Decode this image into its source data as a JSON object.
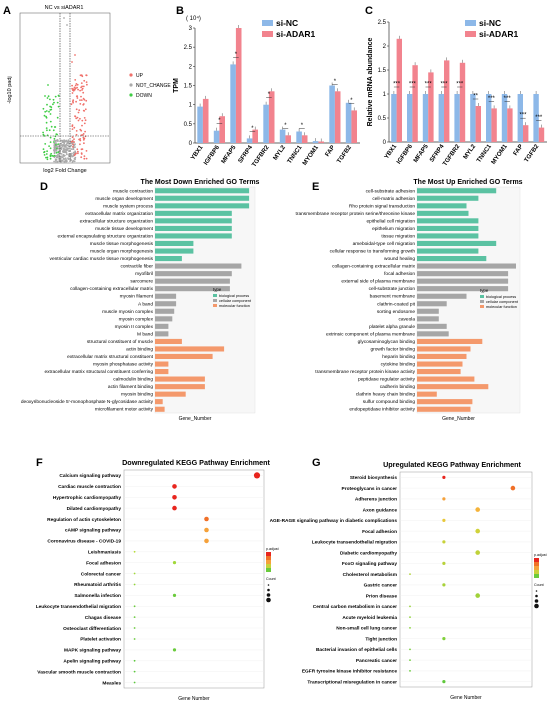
{
  "panels": {
    "A": {
      "letter": "A",
      "title": "NC vs siADAR1",
      "xlabel": "log2 Fold Change",
      "ylabel": "-log10 padj",
      "legend": [
        {
          "label": "UP",
          "color": "#f0706a"
        },
        {
          "label": "NOT_CHANGE",
          "color": "#aaaaaa"
        },
        {
          "label": "DOWN",
          "color": "#3fcd45"
        }
      ]
    },
    "B": {
      "letter": "B",
      "exponent": "( 10⁴)"
    },
    "C": {
      "letter": "C"
    },
    "D": {
      "letter": "D"
    },
    "E": {
      "letter": "E"
    },
    "F": {
      "letter": "F"
    },
    "G": {
      "letter": "G"
    }
  },
  "chart_data": [
    {
      "id": "B",
      "type": "bar",
      "ylabel": "TPM",
      "ylim": [
        0,
        3
      ],
      "yticks": [
        0,
        0.5,
        1,
        1.5,
        2,
        2.5,
        3
      ],
      "categories": [
        "YBX1",
        "IGFBP6",
        "MFAP5",
        "SFRP4",
        "TGFBR2",
        "MYL2",
        "TNNC1",
        "MYOM1",
        "FAP",
        "TGFB2"
      ],
      "series": [
        {
          "name": "si-NC",
          "color": "#8db8e8",
          "values": [
            0.95,
            0.32,
            2.05,
            0.12,
            1.0,
            0.35,
            0.3,
            0.05,
            1.5,
            1.05
          ]
        },
        {
          "name": "si-ADAR1",
          "color": "#f2838e",
          "values": [
            1.15,
            0.7,
            3.0,
            0.35,
            1.35,
            0.2,
            0.2,
            0.04,
            1.35,
            0.85
          ]
        }
      ],
      "sig_labels": [
        "",
        "*",
        "*",
        "*",
        "*",
        "*",
        "*",
        "",
        "*",
        "*"
      ],
      "legend_position": "top-right"
    },
    {
      "id": "C",
      "type": "bar",
      "ylabel": "Relative mRNA abundance",
      "ylim": [
        0,
        2.5
      ],
      "yticks": [
        0,
        0.5,
        1,
        1.5,
        2,
        2.5
      ],
      "categories": [
        "YBX1",
        "IGFBP6",
        "MFAP5",
        "SFRP4",
        "TGFBR2",
        "MYL2",
        "TNNC1",
        "MYOM1",
        "FAP",
        "TGFB2"
      ],
      "series": [
        {
          "name": "si-NC",
          "color": "#8db8e8",
          "values": [
            1,
            1,
            1,
            1,
            1,
            1,
            1,
            1,
            1,
            1
          ]
        },
        {
          "name": "si-ADAR1",
          "color": "#f2838e",
          "values": [
            2.15,
            1.6,
            1.45,
            1.7,
            1.65,
            0.75,
            0.7,
            0.7,
            0.35,
            0.3
          ]
        }
      ],
      "sig_labels": [
        "***",
        "***",
        "***",
        "***",
        "***",
        "**",
        "***",
        "***",
        "***",
        "***"
      ],
      "legend_position": "top-right"
    },
    {
      "id": "D",
      "type": "bar",
      "orientation": "horizontal",
      "title": "The Most Down Enriched GO Terms",
      "xlabel": "Gene_Number",
      "legend": {
        "title": "type",
        "entries": [
          {
            "label": "biological process",
            "color": "#5bc2a2"
          },
          {
            "label": "cellular component",
            "color": "#a6a6a6"
          },
          {
            "label": "molecular function",
            "color": "#f4996c"
          }
        ]
      },
      "categories": [
        "muscle contraction",
        "muscle organ development",
        "muscle system process",
        "extracellular matrix organization",
        "extracellular structure organization",
        "muscle tissue development",
        "external encapsulating structure organization",
        "muscle tissue morphogenesis",
        "muscle organ morphogenesis",
        "ventricular cardiac muscle tissue morphogenesis",
        "contractile fiber",
        "myofibril",
        "sarcomere",
        "collagen-containing extracellular matrix",
        "myosin filament",
        "A band",
        "muscle myosin complex",
        "myosin complex",
        "myosin II complex",
        "M band",
        "structural constituent of muscle",
        "actin binding",
        "extracellular matrix structural constituent",
        "myosin phosphatase activity",
        "extracellular matrix structural constituent conferring",
        "calmodulin binding",
        "actin filament binding",
        "myosin binding",
        "deoxyribonucleoside 5'-monophosphate N-glycosidase activity",
        "microfilament motor activity"
      ],
      "values": [
        98,
        98,
        98,
        80,
        80,
        80,
        80,
        40,
        40,
        28,
        90,
        80,
        78,
        78,
        22,
        22,
        20,
        18,
        14,
        14,
        28,
        72,
        60,
        14,
        14,
        52,
        52,
        32,
        8,
        10
      ],
      "types": [
        "bp",
        "bp",
        "bp",
        "bp",
        "bp",
        "bp",
        "bp",
        "bp",
        "bp",
        "bp",
        "cc",
        "cc",
        "cc",
        "cc",
        "cc",
        "cc",
        "cc",
        "cc",
        "cc",
        "cc",
        "mf",
        "mf",
        "mf",
        "mf",
        "mf",
        "mf",
        "mf",
        "mf",
        "mf",
        "mf"
      ]
    },
    {
      "id": "E",
      "type": "bar",
      "orientation": "horizontal",
      "title": "The Most Up Enriched GO Terms",
      "xlabel": "Gene_Number",
      "legend": {
        "title": "type",
        "entries": [
          {
            "label": "biological process",
            "color": "#5bc2a2"
          },
          {
            "label": "cellular component",
            "color": "#a6a6a6"
          },
          {
            "label": "molecular function",
            "color": "#f4996c"
          }
        ]
      },
      "categories": [
        "cell-substrate adhesion",
        "cell-matrix adhesion",
        "Rho protein signal transduction",
        "transmembrane receptor protein serine/threonine kinase",
        "epithelial cell migration",
        "epithelium migration",
        "tissue migration",
        "ameboidal-type cell migration",
        "cellular response to transforming growth",
        "wound healing",
        "collagen-containing extracellular matrix",
        "focal adhesion",
        "external side of plasma membrane",
        "cell-substrate junction",
        "basement membrane",
        "clathrin-coated pit",
        "sorting endosome",
        "caveola",
        "platelet alpha granule",
        "extrinsic component of plasma membrane",
        "glycosaminoglycan binding",
        "growth factor binding",
        "heparin binding",
        "cytokine binding",
        "transmembrane receptor protein kinase activity",
        "peptidase regulator activity",
        "cadherin binding",
        "clathrin heavy chain binding",
        "sulfur compound binding",
        "endopeptidase inhibitor activity"
      ],
      "values": [
        80,
        62,
        50,
        52,
        62,
        62,
        62,
        80,
        62,
        70,
        100,
        92,
        92,
        92,
        50,
        30,
        22,
        22,
        30,
        32,
        66,
        54,
        50,
        46,
        44,
        58,
        72,
        20,
        56,
        54
      ],
      "types": [
        "bp",
        "bp",
        "bp",
        "bp",
        "bp",
        "bp",
        "bp",
        "bp",
        "bp",
        "bp",
        "cc",
        "cc",
        "cc",
        "cc",
        "cc",
        "cc",
        "cc",
        "cc",
        "cc",
        "cc",
        "mf",
        "mf",
        "mf",
        "mf",
        "mf",
        "mf",
        "mf",
        "mf",
        "mf",
        "mf"
      ]
    },
    {
      "id": "F",
      "type": "scatter",
      "title": "Downregulated KEGG Pathway Enrichment",
      "xlabel": "Gene Number",
      "legend": {
        "color_title": "p.adjust",
        "size_title": "Count"
      },
      "categories": [
        "Calcium signaling pathway",
        "Cardiac muscle contraction",
        "Hypertrophic cardiomyopathy",
        "Dilated cardiomyopathy",
        "Regulation of actin cytoskeleton",
        "cAMP signaling pathway",
        "Coronavirus disease - COVID-19",
        "Leishmaniasis",
        "Focal adhesion",
        "Colorectal cancer",
        "Rheumatoid arthritis",
        "Salmonella infection",
        "Leukocyte transendothelial migration",
        "Chagas disease",
        "Osteoclast differentiation",
        "Platelet activation",
        "MAPK signaling pathway",
        "Apelin signaling pathway",
        "Vascular smooth muscle contraction",
        "Measles"
      ],
      "x": [
        1.0,
        0.38,
        0.38,
        0.38,
        0.62,
        0.62,
        0.62,
        0.08,
        0.38,
        0.08,
        0.08,
        0.38,
        0.08,
        0.08,
        0.08,
        0.08,
        0.38,
        0.08,
        0.08,
        0.08
      ],
      "colors": [
        "#e8251e",
        "#e8251e",
        "#e8251e",
        "#e8251e",
        "#f07028",
        "#f5a13a",
        "#f5a13a",
        "#b6dc3a",
        "#a0d83a",
        "#a0d83a",
        "#90d43a",
        "#6acb3c",
        "#6acb3c",
        "#6acb3c",
        "#6acb3c",
        "#6acb3c",
        "#6acb3c",
        "#5bc83d",
        "#5bc83d",
        "#5bc83d"
      ],
      "sizes": [
        4,
        3,
        3,
        3,
        3,
        3,
        3,
        1,
        2,
        1,
        1,
        2,
        1,
        1,
        1,
        1,
        2,
        1,
        1,
        1
      ]
    },
    {
      "id": "G",
      "type": "scatter",
      "title": "Upregulated KEGG Pathway Enrichment",
      "xlabel": "Gene Number",
      "legend": {
        "color_title": "p.adjust",
        "size_title": "Count"
      },
      "categories": [
        "Steroid biosynthesis",
        "Proteoglycans in cancer",
        "Adherens junction",
        "Axon guidance",
        "AGE-RAGE signaling pathway in diabetic complications",
        "Focal adhesion",
        "Leukocyte transendothelial migration",
        "Diabetic cardiomyopathy",
        "FoxO signaling pathway",
        "Cholesterol metabolism",
        "Gastric cancer",
        "Prion disease",
        "Central carbon metabolism in cancer",
        "Acute myeloid leukemia",
        "Non-small cell lung cancer",
        "Tight junction",
        "Bacterial invasion of epithelial cells",
        "Pancreatic cancer",
        "EGFR tyrosine kinase inhibitor resistance",
        "Transcriptional misregulation in cancer"
      ],
      "x": [
        0.35,
        0.9,
        0.35,
        0.62,
        0.35,
        0.62,
        0.35,
        0.62,
        0.35,
        0.08,
        0.35,
        0.62,
        0.08,
        0.08,
        0.08,
        0.35,
        0.08,
        0.08,
        0.08,
        0.35
      ],
      "colors": [
        "#e8251e",
        "#f07028",
        "#f5a13a",
        "#f5b33a",
        "#e8c83a",
        "#d0d23a",
        "#c8d23a",
        "#c0d23a",
        "#b8d23a",
        "#b0d23a",
        "#a8d23a",
        "#a0d23a",
        "#98d23a",
        "#90d23a",
        "#88d23a",
        "#80d03a",
        "#78ce3b",
        "#70cc3b",
        "#68ca3c",
        "#60c83c"
      ],
      "sizes": [
        2,
        3,
        2,
        3,
        2,
        3,
        2,
        3,
        2,
        1,
        2,
        3,
        1,
        1,
        1,
        2,
        1,
        1,
        1,
        2
      ]
    }
  ]
}
